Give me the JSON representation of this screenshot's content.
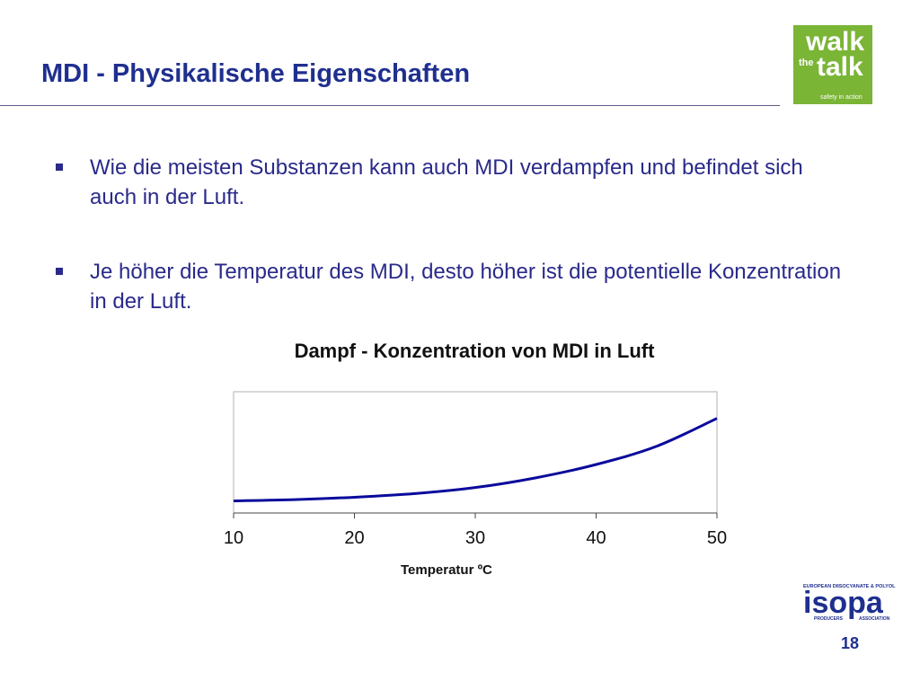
{
  "slide": {
    "title": "MDI - Physikalische Eigenschaften",
    "page_number": "18"
  },
  "logos": {
    "walk_the_talk": {
      "word1": "walk",
      "word2": "the",
      "word3": "talk",
      "tagline": "safety in action",
      "color": "#7ab536"
    },
    "isopa": {
      "name": "isopa",
      "line1": "EUROPEAN DIISOCYANATE & POLYOL",
      "line2a": "PRODUCERS",
      "line2b": "ASSOCIATION",
      "color": "#1f2f8f"
    }
  },
  "bullets": [
    {
      "text": "Wie die meisten Substanzen kann auch MDI verdampfen und befindet sich auch in der Luft."
    },
    {
      "text": "Je höher die Temperatur des MDI, desto höher ist die potentielle Konzentration in der Luft."
    }
  ],
  "chart_data": {
    "type": "line",
    "title": "Dampf - Konzentration von MDI in Luft",
    "xlabel": "Temperatur ºC",
    "ylabel": "",
    "x_ticks": [
      "10",
      "20",
      "30",
      "40",
      "50"
    ],
    "xlim": [
      10,
      50
    ],
    "ylim": [
      0,
      1
    ],
    "grid": false,
    "series": [
      {
        "x": [
          10,
          15,
          20,
          25,
          30,
          35,
          40,
          45,
          50
        ],
        "y": [
          0.1,
          0.11,
          0.13,
          0.16,
          0.21,
          0.29,
          0.4,
          0.55,
          0.78
        ],
        "color": "#0a0a9c"
      }
    ]
  }
}
